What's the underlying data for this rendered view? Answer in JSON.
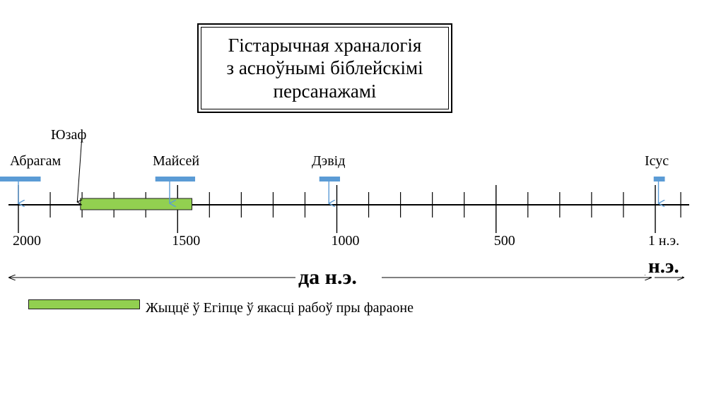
{
  "title": {
    "lines": [
      "Гістарычная храналогія",
      "з асноўнымі біблейскімі",
      "персанажамі"
    ]
  },
  "timeline": {
    "axis_range": [
      2100,
      -10
    ],
    "major_ticks": [
      {
        "year": 2000,
        "label": "2000"
      },
      {
        "year": 1500,
        "label": "1500"
      },
      {
        "year": 1000,
        "label": "1000"
      },
      {
        "year": 500,
        "label": "500"
      },
      {
        "year": 0,
        "label": "1 н.э."
      }
    ],
    "minor_tick_step": 100,
    "events": [
      {
        "name": "Абрагам",
        "bar_start": 2080,
        "bar_end": 1930,
        "point": 2000
      },
      {
        "name": "Юзаф",
        "point": 1815
      },
      {
        "name": "Майсей",
        "bar_start": 1570,
        "bar_end": 1445,
        "point": 1525
      },
      {
        "name": "Дэвід",
        "bar_start": 1055,
        "bar_end": 990,
        "point": 1025
      },
      {
        "name": "Ісус",
        "bar_start": 5,
        "bar_end": -30,
        "point": -10
      }
    ],
    "period": {
      "start": 1805,
      "end": 1455,
      "color": "#92d050"
    },
    "eras": {
      "bce": "да н.э.",
      "ce": "н.э."
    }
  },
  "legend": {
    "label": "Жыццё ў Егіпце ў якасці рабоў пры фараоне",
    "color": "#92d050"
  },
  "colors": {
    "event_marker": "#5b9bd5",
    "period": "#92d050",
    "axis": "#000000"
  }
}
